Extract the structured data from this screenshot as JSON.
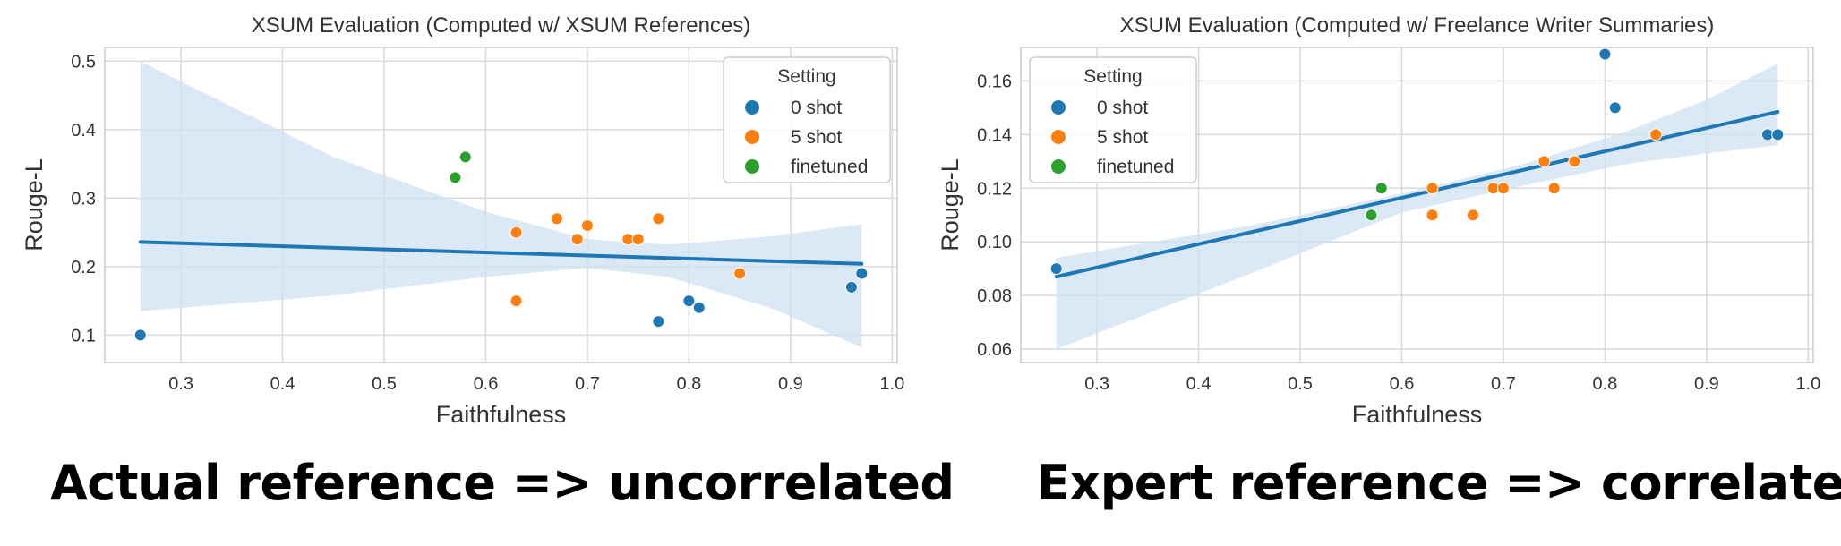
{
  "colors": {
    "zero_shot": "#1f77b4",
    "five_shot": "#ff7f0e",
    "finetuned": "#2ca02c",
    "band": "#cfe2f3",
    "grid": "#d9d9d9",
    "frame": "#cccccc"
  },
  "chart_data": [
    {
      "type": "scatter",
      "title": "XSUM Evaluation (Computed w/ XSUM References)",
      "xlabel": "Faithfulness",
      "ylabel": "Rouge-L",
      "xlim": [
        0.225,
        1.005
      ],
      "ylim": [
        0.06,
        0.52
      ],
      "xticks": [
        0.3,
        0.4,
        0.5,
        0.6,
        0.7,
        0.8,
        0.9,
        1.0
      ],
      "xtick_labels": [
        "0.3",
        "0.4",
        "0.5",
        "0.6",
        "0.7",
        "0.8",
        "0.9",
        "1.0"
      ],
      "yticks": [
        0.1,
        0.2,
        0.3,
        0.4,
        0.5
      ],
      "ytick_labels": [
        "0.1",
        "0.2",
        "0.3",
        "0.4",
        "0.5"
      ],
      "legend": {
        "title": "Setting",
        "position": "top-right",
        "entries": [
          "0 shot",
          "5 shot",
          "finetuned"
        ]
      },
      "series": [
        {
          "name": "0 shot",
          "color_key": "zero_shot",
          "points": [
            [
              0.26,
              0.1
            ],
            [
              0.77,
              0.12
            ],
            [
              0.8,
              0.15
            ],
            [
              0.81,
              0.14
            ],
            [
              0.96,
              0.17
            ],
            [
              0.97,
              0.19
            ]
          ]
        },
        {
          "name": "5 shot",
          "color_key": "five_shot",
          "points": [
            [
              0.63,
              0.25
            ],
            [
              0.63,
              0.15
            ],
            [
              0.67,
              0.27
            ],
            [
              0.69,
              0.24
            ],
            [
              0.7,
              0.26
            ],
            [
              0.74,
              0.24
            ],
            [
              0.75,
              0.24
            ],
            [
              0.77,
              0.27
            ],
            [
              0.85,
              0.19
            ]
          ]
        },
        {
          "name": "finetuned",
          "color_key": "finetuned",
          "points": [
            [
              0.57,
              0.33
            ],
            [
              0.58,
              0.36
            ]
          ]
        }
      ],
      "regression": {
        "x": [
          0.26,
          0.97
        ],
        "y": [
          0.236,
          0.204
        ]
      },
      "confidence_band": {
        "x": [
          0.26,
          0.45,
          0.6,
          0.7,
          0.78,
          0.88,
          0.97
        ],
        "upper": [
          0.5,
          0.36,
          0.28,
          0.24,
          0.232,
          0.244,
          0.262
        ],
        "lower": [
          0.135,
          0.158,
          0.185,
          0.198,
          0.185,
          0.14,
          0.082
        ]
      }
    },
    {
      "type": "scatter",
      "title": "XSUM Evaluation (Computed w/ Freelance Writer Summaries)",
      "xlabel": "Faithfulness",
      "ylabel": "Rouge-L",
      "xlim": [
        0.225,
        1.005
      ],
      "ylim": [
        0.055,
        0.1725
      ],
      "xticks": [
        0.3,
        0.4,
        0.5,
        0.6,
        0.7,
        0.8,
        0.9,
        1.0
      ],
      "xtick_labels": [
        "0.3",
        "0.4",
        "0.5",
        "0.6",
        "0.7",
        "0.8",
        "0.9",
        "1.0"
      ],
      "yticks": [
        0.06,
        0.08,
        0.1,
        0.12,
        0.14,
        0.16
      ],
      "ytick_labels": [
        "0.06",
        "0.08",
        "0.10",
        "0.12",
        "0.14",
        "0.16"
      ],
      "legend": {
        "title": "Setting",
        "position": "top-left",
        "entries": [
          "0 shot",
          "5 shot",
          "finetuned"
        ]
      },
      "series": [
        {
          "name": "0 shot",
          "color_key": "zero_shot",
          "points": [
            [
              0.26,
              0.09
            ],
            [
              0.8,
              0.17
            ],
            [
              0.81,
              0.15
            ],
            [
              0.96,
              0.14
            ],
            [
              0.97,
              0.14
            ]
          ]
        },
        {
          "name": "5 shot",
          "color_key": "five_shot",
          "points": [
            [
              0.63,
              0.12
            ],
            [
              0.63,
              0.11
            ],
            [
              0.67,
              0.11
            ],
            [
              0.69,
              0.12
            ],
            [
              0.7,
              0.12
            ],
            [
              0.74,
              0.13
            ],
            [
              0.75,
              0.12
            ],
            [
              0.77,
              0.13
            ],
            [
              0.85,
              0.14
            ]
          ]
        },
        {
          "name": "finetuned",
          "color_key": "finetuned",
          "points": [
            [
              0.57,
              0.11
            ],
            [
              0.58,
              0.12
            ]
          ]
        }
      ],
      "regression": {
        "x": [
          0.26,
          0.97
        ],
        "y": [
          0.087,
          0.1485
        ]
      },
      "confidence_band": {
        "x": [
          0.26,
          0.45,
          0.6,
          0.72,
          0.82,
          0.9,
          0.97
        ],
        "upper": [
          0.094,
          0.106,
          0.118,
          0.129,
          0.141,
          0.153,
          0.1665
        ],
        "lower": [
          0.06,
          0.088,
          0.111,
          0.121,
          0.129,
          0.133,
          0.136
        ]
      }
    }
  ],
  "captions": {
    "left": "Actual reference => uncorrelated",
    "right": "Expert reference => correlated"
  }
}
